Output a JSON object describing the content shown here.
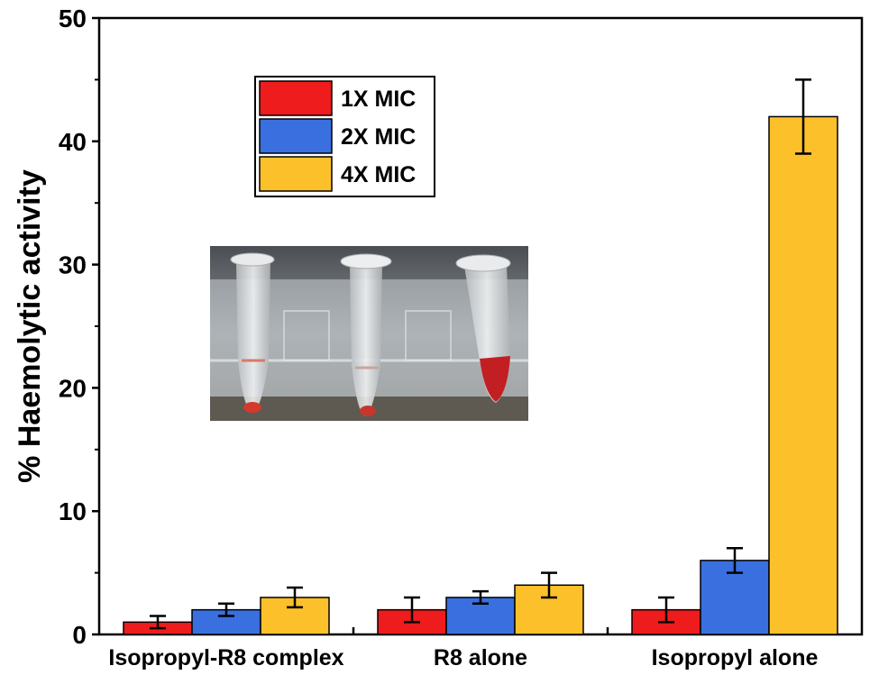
{
  "chart_data": {
    "type": "bar",
    "categories": [
      "Isopropyl-R8 complex",
      "R8 alone",
      "Isopropyl alone"
    ],
    "series": [
      {
        "name": "1X MIC",
        "color": "#ee1c1c",
        "values": [
          1,
          2,
          2
        ],
        "errors": [
          0.5,
          1,
          1
        ]
      },
      {
        "name": "2X MIC",
        "color": "#3a6fe0",
        "values": [
          2,
          3,
          6
        ],
        "errors": [
          0.5,
          0.5,
          1
        ]
      },
      {
        "name": "4X MIC",
        "color": "#fcc02a",
        "values": [
          3,
          4,
          42
        ],
        "errors": [
          0.8,
          1,
          3
        ]
      }
    ],
    "title": "",
    "xlabel": "",
    "ylabel": "% Haemolytic activity",
    "ylim": [
      0,
      50
    ],
    "yticks": [
      "0",
      "10",
      "20",
      "30",
      "40",
      "50"
    ],
    "grid": false,
    "legend_position": "top-left",
    "inset": "photo of three microcentrifuge tubes"
  }
}
